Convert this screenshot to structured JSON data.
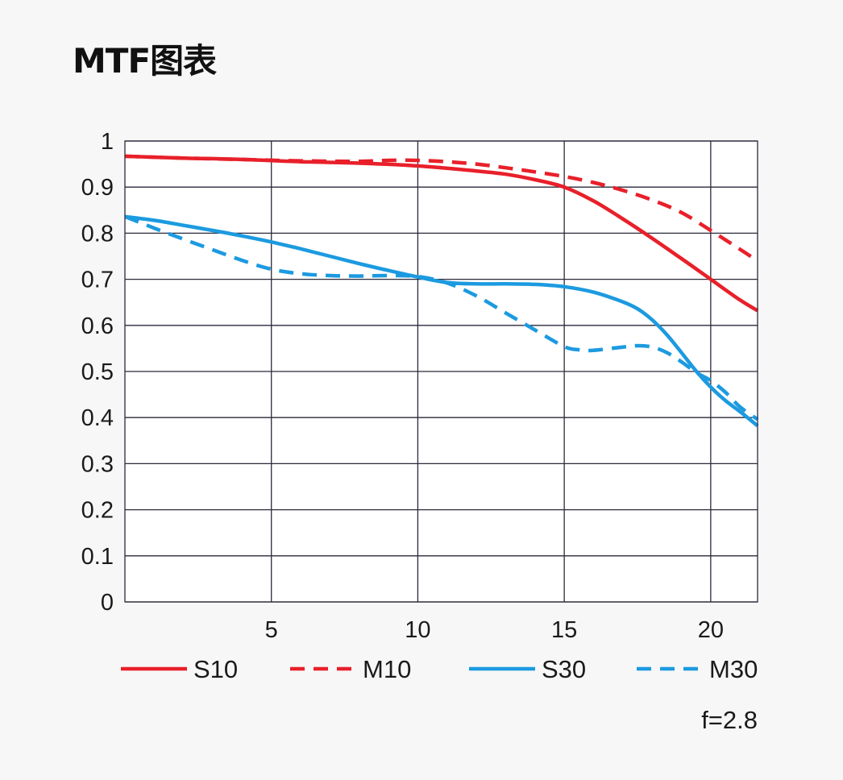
{
  "chart_data": {
    "type": "line",
    "title": "MTF图表",
    "xlabel": "",
    "ylabel": "",
    "xlim": [
      0,
      21.6
    ],
    "ylim": [
      0,
      1
    ],
    "x_ticks": [
      5,
      10,
      15,
      20
    ],
    "x_tick_labels": [
      "5",
      "10",
      "15",
      "20"
    ],
    "y_ticks": [
      0,
      0.1,
      0.2,
      0.3,
      0.4,
      0.5,
      0.6,
      0.7,
      0.8,
      0.9,
      1
    ],
    "y_tick_labels": [
      "0",
      "0.1",
      "0.2",
      "0.3",
      "0.4",
      "0.5",
      "0.6",
      "0.7",
      "0.8",
      "0.9",
      "1"
    ],
    "grid": true,
    "legend_position": "bottom",
    "annotation": "f=2.8",
    "series": [
      {
        "name": "S10",
        "color": "#e8202a",
        "dash": false,
        "points": [
          [
            0,
            0.967
          ],
          [
            2,
            0.963
          ],
          [
            4,
            0.96
          ],
          [
            6,
            0.955
          ],
          [
            8,
            0.952
          ],
          [
            10,
            0.946
          ],
          [
            12,
            0.935
          ],
          [
            13,
            0.928
          ],
          [
            14,
            0.916
          ],
          [
            15,
            0.9
          ],
          [
            16,
            0.87
          ],
          [
            17,
            0.831
          ],
          [
            18,
            0.789
          ],
          [
            19,
            0.745
          ],
          [
            20,
            0.7
          ],
          [
            21,
            0.655
          ],
          [
            21.6,
            0.632
          ]
        ]
      },
      {
        "name": "M10",
        "color": "#e8202a",
        "dash": true,
        "points": [
          [
            0,
            0.967
          ],
          [
            2,
            0.963
          ],
          [
            4,
            0.96
          ],
          [
            6,
            0.957
          ],
          [
            8,
            0.956
          ],
          [
            9,
            0.958
          ],
          [
            10,
            0.958
          ],
          [
            11,
            0.955
          ],
          [
            12,
            0.95
          ],
          [
            13,
            0.942
          ],
          [
            14,
            0.933
          ],
          [
            15,
            0.923
          ],
          [
            16,
            0.91
          ],
          [
            17,
            0.893
          ],
          [
            18,
            0.872
          ],
          [
            19,
            0.845
          ],
          [
            20,
            0.806
          ],
          [
            21,
            0.765
          ],
          [
            21.6,
            0.74
          ]
        ]
      },
      {
        "name": "S30",
        "color": "#1c9ae0",
        "dash": false,
        "points": [
          [
            0,
            0.836
          ],
          [
            1,
            0.828
          ],
          [
            2,
            0.817
          ],
          [
            3,
            0.806
          ],
          [
            4,
            0.794
          ],
          [
            5,
            0.781
          ],
          [
            6,
            0.766
          ],
          [
            7,
            0.75
          ],
          [
            8,
            0.734
          ],
          [
            9,
            0.719
          ],
          [
            10,
            0.705
          ],
          [
            11,
            0.693
          ],
          [
            12,
            0.69
          ],
          [
            13,
            0.69
          ],
          [
            14,
            0.689
          ],
          [
            15,
            0.684
          ],
          [
            16,
            0.672
          ],
          [
            17,
            0.651
          ],
          [
            17.5,
            0.636
          ],
          [
            18,
            0.612
          ],
          [
            18.5,
            0.58
          ],
          [
            19,
            0.541
          ],
          [
            19.5,
            0.501
          ],
          [
            20,
            0.466
          ],
          [
            20.5,
            0.437
          ],
          [
            21,
            0.413
          ],
          [
            21.6,
            0.382
          ]
        ]
      },
      {
        "name": "M30",
        "color": "#1c9ae0",
        "dash": true,
        "points": [
          [
            0,
            0.836
          ],
          [
            1,
            0.811
          ],
          [
            2,
            0.787
          ],
          [
            3,
            0.764
          ],
          [
            4,
            0.741
          ],
          [
            5,
            0.722
          ],
          [
            6,
            0.712
          ],
          [
            7,
            0.708
          ],
          [
            8,
            0.707
          ],
          [
            9,
            0.708
          ],
          [
            10,
            0.706
          ],
          [
            11,
            0.692
          ],
          [
            12,
            0.664
          ],
          [
            13,
            0.627
          ],
          [
            14,
            0.59
          ],
          [
            15,
            0.554
          ],
          [
            15.5,
            0.547
          ],
          [
            16,
            0.546
          ],
          [
            17,
            0.553
          ],
          [
            17.5,
            0.556
          ],
          [
            18,
            0.553
          ],
          [
            18.5,
            0.541
          ],
          [
            19,
            0.521
          ],
          [
            19.5,
            0.498
          ],
          [
            20,
            0.48
          ],
          [
            20.5,
            0.455
          ],
          [
            21,
            0.423
          ],
          [
            21.6,
            0.396
          ]
        ]
      }
    ]
  }
}
